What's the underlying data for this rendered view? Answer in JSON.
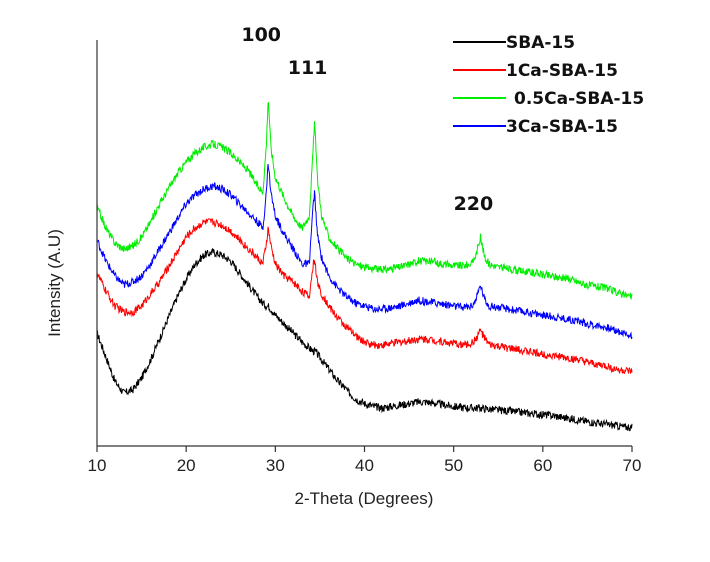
{
  "chart_data": {
    "type": "line",
    "xlabel": "2-Theta (Degrees)",
    "ylabel": "Intensity (A.U)",
    "xlim": [
      10,
      70
    ],
    "x_ticks": [
      "10",
      "20",
      "30",
      "40",
      "50",
      "60",
      "70"
    ],
    "grid": false,
    "legend_position": "top-right",
    "x": [
      10,
      11,
      12,
      13,
      14,
      15,
      16,
      17,
      18,
      19,
      20,
      21,
      22,
      23,
      24,
      25,
      26,
      27,
      28,
      28.6,
      29.0,
      29.2,
      29.5,
      30,
      31,
      32,
      33,
      33.8,
      34.2,
      34.4,
      34.7,
      35.2,
      36,
      37,
      38,
      39,
      40,
      41,
      42,
      43,
      44,
      45,
      46,
      47,
      48,
      49,
      50,
      51,
      52,
      52.5,
      53.0,
      53.5,
      54,
      55,
      56,
      57,
      58,
      59,
      60,
      61,
      62,
      63,
      64,
      65,
      66,
      67,
      68,
      69,
      70
    ],
    "series": [
      {
        "name": "SBA-15",
        "color": "#000000",
        "values": [
          33,
          25,
          17,
          13,
          14,
          18,
          24,
          31,
          38,
          45,
          51,
          56,
          59,
          60,
          59,
          57,
          53,
          49,
          45,
          43,
          42,
          42,
          41,
          39,
          36,
          33,
          30,
          28,
          27,
          27,
          26,
          24,
          21,
          17,
          14,
          11,
          9.5,
          8.5,
          8,
          8.5,
          9,
          9.5,
          10,
          10,
          9.5,
          9,
          8.5,
          8.2,
          8,
          8,
          8,
          7.8,
          7.6,
          7.3,
          7,
          6.7,
          6.4,
          6.1,
          5.8,
          5.5,
          5,
          4.5,
          4,
          3.5,
          3,
          2.6,
          2.2,
          1.8,
          1.5
        ]
      },
      {
        "name": "1Ca-SBA-15",
        "color": "#ff0000",
        "values": [
          53,
          47,
          42,
          40,
          40,
          42,
          46,
          50,
          55,
          60,
          65,
          68,
          70,
          70,
          69,
          67,
          64,
          61,
          58,
          56,
          63,
          68,
          62,
          56,
          52,
          50,
          47,
          45,
          55,
          58,
          50,
          46,
          42,
          38,
          35,
          32,
          30,
          29,
          29,
          29.5,
          30,
          30.5,
          31,
          31,
          30.5,
          30,
          29.5,
          29,
          29.5,
          31,
          34,
          31,
          29,
          28.5,
          28,
          27.5,
          27,
          26.5,
          26,
          25.5,
          25,
          24.5,
          24,
          23,
          22.5,
          22,
          21,
          20.5,
          20
        ]
      },
      {
        "name": "0.5Ca-SBA-15",
        "color": "#00ee00",
        "values": [
          75,
          68,
          63,
          61,
          62,
          65,
          70,
          76,
          81,
          86,
          90,
          93,
          95,
          96,
          95,
          93,
          90,
          87,
          82,
          80,
          96,
          112,
          95,
          85,
          78,
          72,
          68,
          72,
          92,
          104,
          85,
          72,
          65,
          61,
          58,
          56,
          55,
          54.5,
          54,
          54.5,
          55,
          56,
          57,
          57,
          56.5,
          56,
          55.5,
          55.5,
          56,
          59,
          65,
          58,
          56,
          55,
          54.5,
          54,
          53.5,
          53,
          52.5,
          52,
          51.5,
          51,
          50,
          49,
          48.5,
          48,
          47,
          46,
          45
        ]
      },
      {
        "name": "3Ca-SBA-15",
        "color": "#0000ff",
        "values": [
          64,
          57,
          52,
          49,
          50,
          52,
          56,
          61,
          66,
          71,
          76,
          79,
          81,
          82,
          81,
          79,
          76,
          73,
          70,
          68,
          80,
          90,
          80,
          72,
          66,
          61,
          56,
          56,
          74,
          80,
          66,
          58,
          52,
          48,
          45,
          43,
          42,
          41,
          41,
          41.5,
          42,
          43,
          44,
          43.5,
          43,
          42.5,
          42,
          41.5,
          42,
          44,
          49,
          44,
          42,
          41.5,
          41,
          40.5,
          40,
          39.5,
          39,
          38.5,
          38,
          37.5,
          37,
          36,
          35.5,
          35,
          34,
          33,
          32
        ]
      }
    ],
    "annotations": [
      {
        "text": "100",
        "x": 29.2
      },
      {
        "text": "111",
        "x": 34.4
      },
      {
        "text": "220",
        "x": 53.0
      }
    ]
  }
}
